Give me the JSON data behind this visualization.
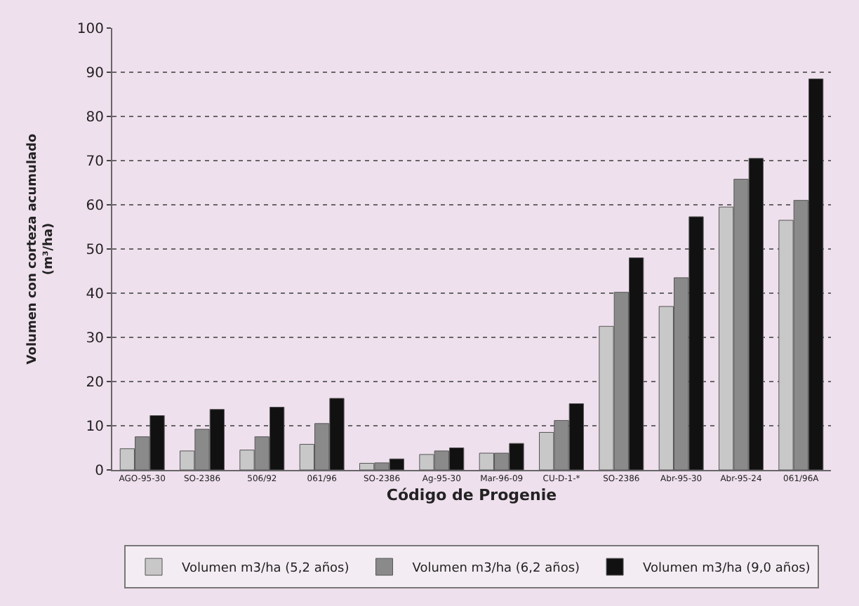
{
  "chart_data": {
    "type": "bar",
    "xlabel": "Código de Progenie",
    "ylabel": "Volumen con corteza acumulado\n(m³/ha)",
    "categories": [
      "AGO-95-30",
      "SO-2386",
      "506/92",
      "061/96",
      "SO-2386",
      "Ag-95-30",
      "Mar-96-09",
      "CU-D-1-*",
      "SO-2386",
      "Abr-95-30",
      "Abr-95-24",
      "061/96A"
    ],
    "series": [
      {
        "name": "Volumen m3/ha (5,2 años)",
        "color": "#c8c8c8",
        "values": [
          4.8,
          4.3,
          4.5,
          5.8,
          1.5,
          3.5,
          3.8,
          8.5,
          32.5,
          37,
          59.5,
          56.5
        ]
      },
      {
        "name": "Volumen m3/ha (6,2 años)",
        "color": "#8a8a8a",
        "values": [
          7.5,
          9.2,
          7.5,
          10.5,
          1.6,
          4.3,
          3.8,
          11.2,
          40.2,
          43.5,
          65.8,
          61
        ]
      },
      {
        "name": "Volumen m3/ha (9,0 años)",
        "color": "#111111",
        "values": [
          12.3,
          13.7,
          14.2,
          16.2,
          2.5,
          5,
          6,
          15,
          48,
          57.3,
          70.5,
          88.5
        ]
      }
    ],
    "ylim": [
      0,
      100
    ],
    "yticks": [
      0,
      10,
      20,
      30,
      40,
      50,
      60,
      70,
      80,
      90,
      100
    ],
    "grid": "y",
    "legend": "bottom"
  }
}
